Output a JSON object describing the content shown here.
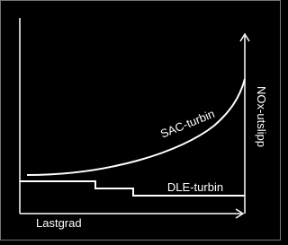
{
  "labels": {
    "x_axis": "Lastgrad",
    "y_axis": "NOx-utslipp",
    "curve_sac": "SAC-turbin",
    "curve_dle": "DLE-turbin"
  }
}
